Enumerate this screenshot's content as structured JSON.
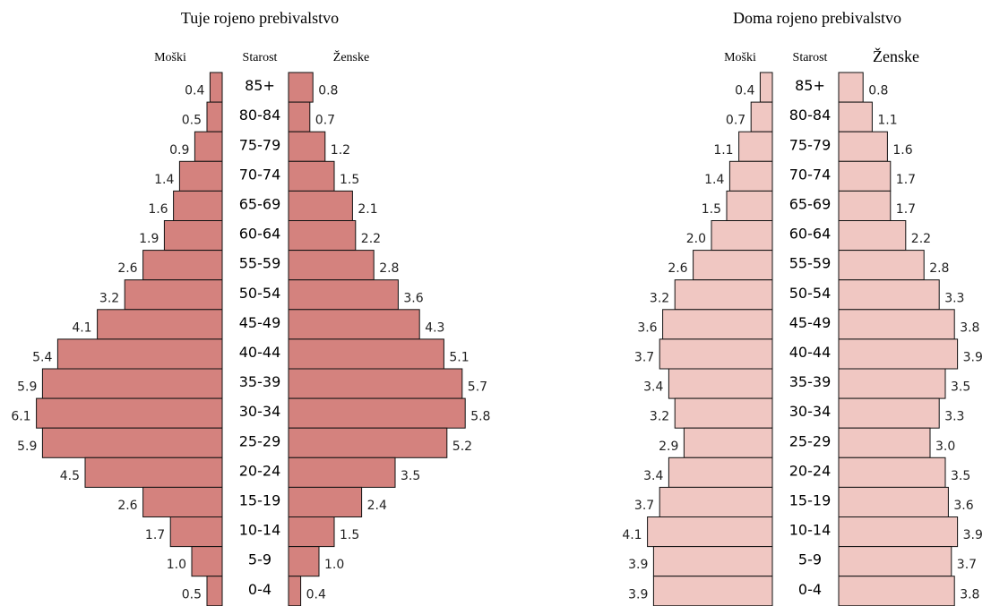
{
  "chart_data": [
    {
      "type": "pyramid",
      "title": "Tuje rojeno prebivalstvo",
      "age_label": "Starost",
      "categories": [
        "85+",
        "80-84",
        "75-79",
        "70-74",
        "65-69",
        "60-64",
        "55-59",
        "50-54",
        "45-49",
        "40-44",
        "35-39",
        "30-34",
        "25-29",
        "20-24",
        "15-19",
        "10-14",
        "5-9",
        "0-4"
      ],
      "series": [
        {
          "name": "Moški",
          "color": "#d4827e",
          "side": "left",
          "values": [
            0.4,
            0.5,
            0.9,
            1.4,
            1.6,
            1.9,
            2.6,
            3.2,
            4.1,
            5.4,
            5.9,
            6.1,
            5.9,
            4.5,
            2.6,
            1.7,
            1.0,
            0.5
          ],
          "value_labels": [
            "0.4",
            "0.5",
            "0.9",
            "1.4",
            "1.6",
            "1.9",
            "2.6",
            "3.2",
            "4.1",
            "5.4",
            "5.9",
            "6.1",
            "5.9",
            "4.5",
            "2.6",
            "1.7",
            "1.0",
            "0.5"
          ]
        },
        {
          "name": "Ženske",
          "color": "#d4827e",
          "side": "right",
          "values": [
            0.8,
            0.7,
            1.2,
            1.5,
            2.1,
            2.2,
            2.8,
            3.6,
            4.3,
            5.1,
            5.7,
            5.8,
            5.2,
            3.5,
            2.4,
            1.5,
            1.0,
            0.4
          ],
          "value_labels": [
            "0.8",
            "0.7",
            "1.2",
            "1.5",
            "2.1",
            "2.2",
            "2.8",
            "3.6",
            "4.3",
            "5.1",
            "5.7",
            "5.8",
            "5.2",
            "3.5",
            "2.4",
            "1.5",
            "1.0",
            "0.4"
          ]
        }
      ]
    },
    {
      "type": "pyramid",
      "title": "Doma rojeno prebivalstvo",
      "age_label": "Starost",
      "categories": [
        "85+",
        "80-84",
        "75-79",
        "70-74",
        "65-69",
        "60-64",
        "55-59",
        "50-54",
        "45-49",
        "40-44",
        "35-39",
        "30-34",
        "25-29",
        "20-24",
        "15-19",
        "10-14",
        "5-9",
        "0-4"
      ],
      "series": [
        {
          "name": "Moški",
          "color": "#f0c7c2",
          "side": "left",
          "values": [
            0.4,
            0.7,
            1.1,
            1.4,
            1.5,
            2.0,
            2.6,
            3.2,
            3.6,
            3.7,
            3.4,
            3.2,
            2.9,
            3.4,
            3.7,
            4.1,
            3.9,
            3.9
          ],
          "value_labels": [
            "0.4",
            "0.7",
            "1.1",
            "1.4",
            "1.5",
            "2.0",
            "2.6",
            "3.2",
            "3.6",
            "3.7",
            "3.4",
            "3.2",
            "2.9",
            "3.4",
            "3.7",
            "4.1",
            "3.9",
            "3.9"
          ]
        },
        {
          "name": "Ženske",
          "color": "#f0c7c2",
          "side": "right",
          "values": [
            0.8,
            1.1,
            1.6,
            1.7,
            1.7,
            2.2,
            2.8,
            3.3,
            3.8,
            3.9,
            3.5,
            3.3,
            3.0,
            3.5,
            3.6,
            3.9,
            3.7,
            3.8
          ],
          "value_labels": [
            "0.8",
            "1.1",
            "1.6",
            "1.7",
            "1.7",
            "2.2",
            "2.8",
            "3.3",
            "3.8",
            "3.9",
            "3.5",
            "3.3",
            "3.0",
            "3.5",
            "3.6",
            "3.9",
            "3.7",
            "3.8"
          ]
        }
      ]
    }
  ]
}
